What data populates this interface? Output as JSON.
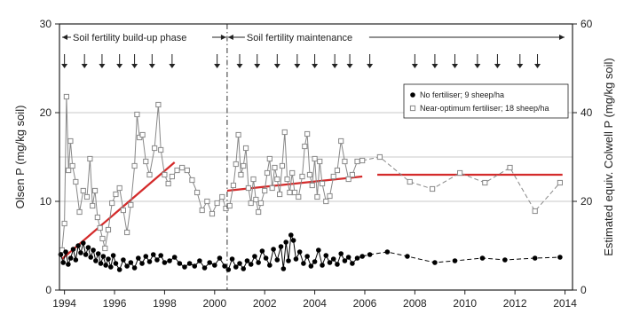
{
  "chart_data": {
    "type": "line",
    "ylabel": "Olsen P  (mg/kg soil)",
    "y2label": "Estimated equiv. Colwell P  (mg/kg soil)",
    "xlim": [
      1993.8,
      2014.3
    ],
    "ylim": [
      0,
      30
    ],
    "y2lim": [
      0,
      60
    ],
    "x_ticks": [
      1994,
      1996,
      1998,
      2000,
      2002,
      2004,
      2006,
      2008,
      2010,
      2012,
      2014
    ],
    "y_ticks": [
      0,
      10,
      20,
      30
    ],
    "y2_ticks": [
      0,
      20,
      40,
      60
    ],
    "grid": "horizontal lines at 10, 15 and 20",
    "phases": {
      "buildup_label": "Soil fertility build-up phase",
      "maintenance_label": "Soil fertility maintenance",
      "boundary_year": 2000.5
    },
    "fertiliser_events": [
      1994.0,
      1994.8,
      1995.5,
      1996.2,
      1996.8,
      1997.5,
      1998.3,
      2000.1,
      2001.0,
      2001.7,
      2002.5,
      2003.3,
      2004.0,
      2004.8,
      2005.4,
      2006.2,
      2008.0,
      2008.8,
      2009.6,
      2010.5,
      2011.3,
      2012.2,
      2012.9
    ],
    "legend": {
      "position": "upper-right",
      "entries": [
        "No fertiliser; 9 sheep/ha",
        "Near-optimum fertiliser; 18 sheep/ha"
      ]
    },
    "colors": {
      "fertilised": "#888888",
      "unfertilised": "#000000",
      "trend": "#d42b2b",
      "frame": "#222222"
    },
    "series": [
      {
        "name": "No fertiliser; 9 sheep/ha",
        "marker": "filled-circle",
        "points": [
          [
            1993.85,
            4.0
          ],
          [
            1993.95,
            3.1
          ],
          [
            1994.05,
            4.3
          ],
          [
            1994.15,
            2.9
          ],
          [
            1994.25,
            3.6
          ],
          [
            1994.35,
            4.6
          ],
          [
            1994.45,
            3.4
          ],
          [
            1994.55,
            5.0
          ],
          [
            1994.65,
            4.2
          ],
          [
            1994.75,
            5.3
          ],
          [
            1994.85,
            4.0
          ],
          [
            1994.95,
            4.8
          ],
          [
            1995.05,
            3.7
          ],
          [
            1995.15,
            4.5
          ],
          [
            1995.25,
            3.3
          ],
          [
            1995.35,
            4.1
          ],
          [
            1995.45,
            3.0
          ],
          [
            1995.55,
            3.8
          ],
          [
            1995.65,
            2.8
          ],
          [
            1995.75,
            3.5
          ],
          [
            1995.85,
            2.6
          ],
          [
            1995.95,
            3.9
          ],
          [
            1996.05,
            3.0
          ],
          [
            1996.2,
            2.3
          ],
          [
            1996.35,
            3.4
          ],
          [
            1996.5,
            2.7
          ],
          [
            1996.65,
            3.1
          ],
          [
            1996.8,
            2.5
          ],
          [
            1996.95,
            3.6
          ],
          [
            1997.1,
            3.0
          ],
          [
            1997.25,
            3.8
          ],
          [
            1997.4,
            3.2
          ],
          [
            1997.55,
            4.0
          ],
          [
            1997.7,
            3.4
          ],
          [
            1997.85,
            3.9
          ],
          [
            1998.0,
            3.1
          ],
          [
            1998.2,
            3.3
          ],
          [
            1998.4,
            3.7
          ],
          [
            1998.6,
            3.0
          ],
          [
            1998.8,
            2.6
          ],
          [
            1999.0,
            3.0
          ],
          [
            1999.2,
            2.7
          ],
          [
            1999.4,
            3.3
          ],
          [
            1999.6,
            2.5
          ],
          [
            1999.8,
            3.1
          ],
          [
            2000.0,
            2.8
          ],
          [
            2000.2,
            3.6
          ],
          [
            2000.4,
            2.7
          ],
          [
            2000.55,
            2.3
          ],
          [
            2000.7,
            3.5
          ],
          [
            2000.85,
            2.6
          ],
          [
            2001.0,
            3.0
          ],
          [
            2001.15,
            2.4
          ],
          [
            2001.3,
            3.3
          ],
          [
            2001.45,
            2.9
          ],
          [
            2001.6,
            3.8
          ],
          [
            2001.75,
            3.1
          ],
          [
            2001.9,
            4.4
          ],
          [
            2002.05,
            3.6
          ],
          [
            2002.2,
            2.8
          ],
          [
            2002.35,
            4.6
          ],
          [
            2002.5,
            3.4
          ],
          [
            2002.65,
            4.9
          ],
          [
            2002.75,
            2.4
          ],
          [
            2002.85,
            5.4
          ],
          [
            2002.95,
            3.3
          ],
          [
            2003.05,
            6.2
          ],
          [
            2003.15,
            5.6
          ],
          [
            2003.25,
            3.5
          ],
          [
            2003.4,
            4.3
          ],
          [
            2003.55,
            3.0
          ],
          [
            2003.7,
            3.8
          ],
          [
            2003.85,
            2.7
          ],
          [
            2004.0,
            3.2
          ],
          [
            2004.15,
            4.5
          ],
          [
            2004.3,
            2.8
          ],
          [
            2004.45,
            3.9
          ],
          [
            2004.6,
            3.1
          ],
          [
            2004.75,
            3.5
          ],
          [
            2004.9,
            2.9
          ],
          [
            2005.05,
            4.1
          ],
          [
            2005.2,
            3.3
          ],
          [
            2005.35,
            3.7
          ],
          [
            2005.5,
            3.0
          ],
          [
            2005.7,
            3.6
          ],
          [
            2005.9,
            3.8
          ],
          [
            2006.2,
            4.0
          ],
          [
            2006.9,
            4.3
          ],
          [
            2007.7,
            3.8
          ],
          [
            2008.8,
            3.1
          ],
          [
            2009.6,
            3.3
          ],
          [
            2010.7,
            3.6
          ],
          [
            2011.6,
            3.4
          ],
          [
            2012.8,
            3.6
          ],
          [
            2013.8,
            3.7
          ]
        ]
      },
      {
        "name": "Near-optimum fertiliser; 18 sheep/ha",
        "marker": "open-square",
        "points": [
          [
            1993.9,
            4.5
          ],
          [
            1994.0,
            7.5
          ],
          [
            1994.08,
            21.8
          ],
          [
            1994.16,
            13.5
          ],
          [
            1994.24,
            16.8
          ],
          [
            1994.32,
            14.0
          ],
          [
            1994.45,
            12.2
          ],
          [
            1994.6,
            8.8
          ],
          [
            1994.75,
            11.2
          ],
          [
            1994.9,
            10.5
          ],
          [
            1995.02,
            14.8
          ],
          [
            1995.12,
            9.5
          ],
          [
            1995.22,
            11.2
          ],
          [
            1995.32,
            8.2
          ],
          [
            1995.42,
            7.0
          ],
          [
            1995.52,
            5.8
          ],
          [
            1995.62,
            4.7
          ],
          [
            1995.75,
            6.8
          ],
          [
            1995.9,
            9.8
          ],
          [
            1996.05,
            10.8
          ],
          [
            1996.2,
            11.5
          ],
          [
            1996.35,
            9.0
          ],
          [
            1996.5,
            6.5
          ],
          [
            1996.65,
            9.6
          ],
          [
            1996.8,
            14.0
          ],
          [
            1996.9,
            19.8
          ],
          [
            1997.0,
            17.2
          ],
          [
            1997.12,
            17.5
          ],
          [
            1997.25,
            14.5
          ],
          [
            1997.4,
            13.0
          ],
          [
            1997.6,
            16.0
          ],
          [
            1997.75,
            20.9
          ],
          [
            1997.85,
            15.8
          ],
          [
            1998.0,
            13.0
          ],
          [
            1998.15,
            12.0
          ],
          [
            1998.3,
            12.8
          ],
          [
            1998.5,
            13.5
          ],
          [
            1998.7,
            13.8
          ],
          [
            1998.9,
            13.5
          ],
          [
            1999.1,
            12.4
          ],
          [
            1999.3,
            11.0
          ],
          [
            1999.5,
            9.0
          ],
          [
            1999.7,
            10.0
          ],
          [
            1999.9,
            8.6
          ],
          [
            2000.1,
            9.8
          ],
          [
            2000.3,
            10.5
          ],
          [
            2000.45,
            9.2
          ],
          [
            2000.6,
            9.5
          ],
          [
            2000.75,
            11.8
          ],
          [
            2000.85,
            14.2
          ],
          [
            2000.95,
            17.5
          ],
          [
            2001.05,
            13.0
          ],
          [
            2001.15,
            14.0
          ],
          [
            2001.25,
            16.0
          ],
          [
            2001.35,
            11.5
          ],
          [
            2001.45,
            9.8
          ],
          [
            2001.55,
            12.5
          ],
          [
            2001.65,
            10.2
          ],
          [
            2001.75,
            8.8
          ],
          [
            2001.85,
            9.8
          ],
          [
            2002.0,
            11.2
          ],
          [
            2002.1,
            13.2
          ],
          [
            2002.2,
            14.8
          ],
          [
            2002.3,
            11.5
          ],
          [
            2002.4,
            13.8
          ],
          [
            2002.5,
            12.5
          ],
          [
            2002.6,
            10.8
          ],
          [
            2002.7,
            14.0
          ],
          [
            2002.8,
            17.8
          ],
          [
            2002.9,
            12.5
          ],
          [
            2003.0,
            11.0
          ],
          [
            2003.1,
            13.2
          ],
          [
            2003.2,
            11.0
          ],
          [
            2003.35,
            10.5
          ],
          [
            2003.5,
            12.8
          ],
          [
            2003.6,
            16.2
          ],
          [
            2003.7,
            17.6
          ],
          [
            2003.8,
            13.0
          ],
          [
            2003.9,
            11.8
          ],
          [
            2004.0,
            14.8
          ],
          [
            2004.1,
            10.5
          ],
          [
            2004.2,
            14.5
          ],
          [
            2004.3,
            12.0
          ],
          [
            2004.45,
            10.0
          ],
          [
            2004.6,
            10.6
          ],
          [
            2004.75,
            12.8
          ],
          [
            2004.9,
            13.5
          ],
          [
            2005.05,
            16.8
          ],
          [
            2005.2,
            14.5
          ],
          [
            2005.35,
            12.5
          ],
          [
            2005.5,
            13.0
          ],
          [
            2005.7,
            14.5
          ],
          [
            2005.9,
            14.6
          ],
          [
            2006.6,
            15.0
          ],
          [
            2007.8,
            12.2
          ],
          [
            2008.7,
            11.4
          ],
          [
            2009.8,
            13.2
          ],
          [
            2010.8,
            12.1
          ],
          [
            2011.8,
            13.8
          ],
          [
            2012.8,
            8.9
          ],
          [
            2013.8,
            12.1
          ]
        ]
      }
    ],
    "trend_lines": [
      {
        "from": [
          1993.9,
          3.5
        ],
        "to": [
          1998.4,
          14.4
        ]
      },
      {
        "from": [
          2000.5,
          11.2
        ],
        "to": [
          2005.9,
          12.8
        ]
      },
      {
        "from": [
          2006.5,
          13.0
        ],
        "to": [
          2013.9,
          13.0
        ]
      }
    ]
  }
}
